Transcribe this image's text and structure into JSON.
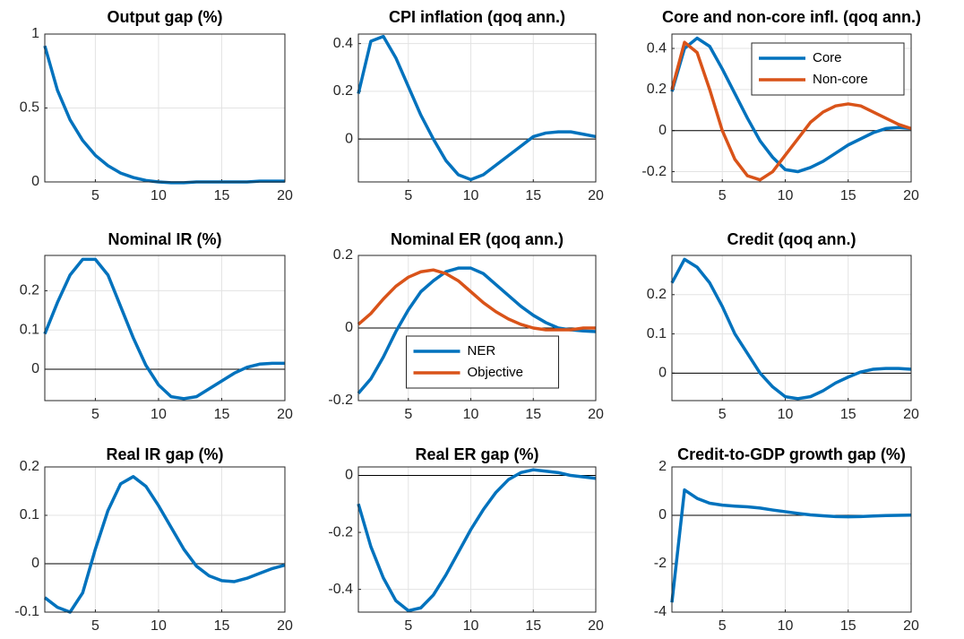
{
  "chart_data": [
    {
      "type": "line",
      "title": "Output gap (%)",
      "x": [
        1,
        2,
        3,
        4,
        5,
        6,
        7,
        8,
        9,
        10,
        11,
        12,
        13,
        14,
        15,
        16,
        17,
        18,
        19,
        20
      ],
      "xlim": [
        1,
        20
      ],
      "xticks": [
        5,
        10,
        15,
        20
      ],
      "ylim": [
        0,
        1
      ],
      "yticks": [
        0,
        0.5,
        1
      ],
      "grid": true,
      "hline": 0,
      "series": [
        {
          "name": "Output gap",
          "color": "#0072bd",
          "values": [
            0.92,
            0.62,
            0.42,
            0.28,
            0.18,
            0.11,
            0.06,
            0.03,
            0.01,
            0,
            -0.005,
            -0.005,
            0,
            0,
            0,
            0,
            0,
            0.005,
            0.005,
            0.005
          ]
        }
      ]
    },
    {
      "type": "line",
      "title": "CPI inflation (qoq ann.)",
      "x": [
        1,
        2,
        3,
        4,
        5,
        6,
        7,
        8,
        9,
        10,
        11,
        12,
        13,
        14,
        15,
        16,
        17,
        18,
        19,
        20
      ],
      "xlim": [
        1,
        20
      ],
      "xticks": [
        5,
        10,
        15,
        20
      ],
      "ylim": [
        -0.18,
        0.44
      ],
      "yticks": [
        0,
        0.2,
        0.4
      ],
      "grid": true,
      "hline": 0,
      "series": [
        {
          "name": "CPI inflation",
          "color": "#0072bd",
          "values": [
            0.19,
            0.41,
            0.43,
            0.34,
            0.22,
            0.1,
            0,
            -0.09,
            -0.15,
            -0.17,
            -0.15,
            -0.11,
            -0.07,
            -0.03,
            0.01,
            0.025,
            0.03,
            0.03,
            0.02,
            0.01
          ]
        }
      ]
    },
    {
      "type": "line",
      "title": "Core and non-core infl. (qoq ann.)",
      "x": [
        1,
        2,
        3,
        4,
        5,
        6,
        7,
        8,
        9,
        10,
        11,
        12,
        13,
        14,
        15,
        16,
        17,
        18,
        19,
        20
      ],
      "xlim": [
        1,
        20
      ],
      "xticks": [
        5,
        10,
        15,
        20
      ],
      "ylim": [
        -0.25,
        0.47
      ],
      "yticks": [
        -0.2,
        0,
        0.2,
        0.4
      ],
      "grid": true,
      "hline": 0,
      "legend": "northeast",
      "series": [
        {
          "name": "Core",
          "color": "#0072bd",
          "values": [
            0.19,
            0.4,
            0.45,
            0.41,
            0.3,
            0.18,
            0.06,
            -0.05,
            -0.13,
            -0.19,
            -0.2,
            -0.18,
            -0.15,
            -0.11,
            -0.07,
            -0.04,
            -0.01,
            0.01,
            0.015,
            0.01
          ]
        },
        {
          "name": "Non-core",
          "color": "#d95319",
          "values": [
            0.2,
            0.43,
            0.38,
            0.2,
            0,
            -0.14,
            -0.22,
            -0.24,
            -0.2,
            -0.12,
            -0.04,
            0.04,
            0.09,
            0.12,
            0.13,
            0.12,
            0.09,
            0.06,
            0.03,
            0.01
          ]
        }
      ]
    },
    {
      "type": "line",
      "title": "Nominal IR (%)",
      "x": [
        1,
        2,
        3,
        4,
        5,
        6,
        7,
        8,
        9,
        10,
        11,
        12,
        13,
        14,
        15,
        16,
        17,
        18,
        19,
        20
      ],
      "xlim": [
        1,
        20
      ],
      "xticks": [
        5,
        10,
        15,
        20
      ],
      "ylim": [
        -0.08,
        0.29
      ],
      "yticks": [
        0,
        0.1,
        0.2
      ],
      "grid": true,
      "hline": 0,
      "series": [
        {
          "name": "Nominal IR",
          "color": "#0072bd",
          "values": [
            0.09,
            0.17,
            0.24,
            0.28,
            0.28,
            0.24,
            0.16,
            0.08,
            0.01,
            -0.04,
            -0.07,
            -0.075,
            -0.07,
            -0.05,
            -0.03,
            -0.01,
            0.005,
            0.013,
            0.015,
            0.015
          ]
        }
      ]
    },
    {
      "type": "line",
      "title": "Nominal ER (qoq ann.)",
      "x": [
        1,
        2,
        3,
        4,
        5,
        6,
        7,
        8,
        9,
        10,
        11,
        12,
        13,
        14,
        15,
        16,
        17,
        18,
        19,
        20
      ],
      "xlim": [
        1,
        20
      ],
      "xticks": [
        5,
        10,
        15,
        20
      ],
      "ylim": [
        -0.2,
        0.2
      ],
      "yticks": [
        -0.2,
        0,
        0.2
      ],
      "grid": true,
      "hline": 0,
      "legend": "south",
      "series": [
        {
          "name": "NER",
          "color": "#0072bd",
          "values": [
            -0.18,
            -0.14,
            -0.08,
            -0.01,
            0.05,
            0.1,
            0.13,
            0.155,
            0.165,
            0.165,
            0.15,
            0.12,
            0.09,
            0.06,
            0.035,
            0.015,
            0,
            -0.005,
            -0.008,
            -0.01
          ]
        },
        {
          "name": "Objective",
          "color": "#d95319",
          "values": [
            0.01,
            0.04,
            0.08,
            0.115,
            0.14,
            0.155,
            0.16,
            0.15,
            0.13,
            0.1,
            0.07,
            0.045,
            0.025,
            0.01,
            0,
            -0.005,
            -0.005,
            -0.005,
            0,
            0
          ]
        }
      ]
    },
    {
      "type": "line",
      "title": "Credit (qoq ann.)",
      "x": [
        1,
        2,
        3,
        4,
        5,
        6,
        7,
        8,
        9,
        10,
        11,
        12,
        13,
        14,
        15,
        16,
        17,
        18,
        19,
        20
      ],
      "xlim": [
        1,
        20
      ],
      "xticks": [
        5,
        10,
        15,
        20
      ],
      "ylim": [
        -0.07,
        0.3
      ],
      "yticks": [
        0,
        0.1,
        0.2
      ],
      "grid": true,
      "hline": 0,
      "series": [
        {
          "name": "Credit",
          "color": "#0072bd",
          "values": [
            0.23,
            0.29,
            0.27,
            0.23,
            0.17,
            0.1,
            0.05,
            0,
            -0.035,
            -0.06,
            -0.065,
            -0.06,
            -0.045,
            -0.025,
            -0.01,
            0.003,
            0.01,
            0.012,
            0.012,
            0.01
          ]
        }
      ]
    },
    {
      "type": "line",
      "title": "Real IR gap (%)",
      "x": [
        1,
        2,
        3,
        4,
        5,
        6,
        7,
        8,
        9,
        10,
        11,
        12,
        13,
        14,
        15,
        16,
        17,
        18,
        19,
        20
      ],
      "xlim": [
        1,
        20
      ],
      "xticks": [
        5,
        10,
        15,
        20
      ],
      "ylim": [
        -0.1,
        0.2
      ],
      "yticks": [
        -0.1,
        0,
        0.1,
        0.2
      ],
      "grid": true,
      "hline": 0,
      "series": [
        {
          "name": "Real IR gap",
          "color": "#0072bd",
          "values": [
            -0.07,
            -0.09,
            -0.1,
            -0.06,
            0.03,
            0.11,
            0.165,
            0.18,
            0.16,
            0.12,
            0.075,
            0.03,
            -0.005,
            -0.025,
            -0.035,
            -0.037,
            -0.03,
            -0.02,
            -0.01,
            -0.003
          ]
        }
      ]
    },
    {
      "type": "line",
      "title": "Real ER gap (%)",
      "x": [
        1,
        2,
        3,
        4,
        5,
        6,
        7,
        8,
        9,
        10,
        11,
        12,
        13,
        14,
        15,
        16,
        17,
        18,
        19,
        20
      ],
      "xlim": [
        1,
        20
      ],
      "xticks": [
        5,
        10,
        15,
        20
      ],
      "ylim": [
        -0.48,
        0.03
      ],
      "yticks": [
        -0.4,
        -0.2,
        0
      ],
      "grid": true,
      "hline": 0,
      "series": [
        {
          "name": "Real ER gap",
          "color": "#0072bd",
          "values": [
            -0.1,
            -0.25,
            -0.36,
            -0.44,
            -0.475,
            -0.465,
            -0.42,
            -0.35,
            -0.27,
            -0.19,
            -0.12,
            -0.06,
            -0.015,
            0.01,
            0.02,
            0.015,
            0.01,
            0,
            -0.005,
            -0.01
          ]
        }
      ]
    },
    {
      "type": "line",
      "title": "Credit-to-GDP growth gap (%)",
      "x": [
        1,
        2,
        3,
        4,
        5,
        6,
        7,
        8,
        9,
        10,
        11,
        12,
        13,
        14,
        15,
        16,
        17,
        18,
        19,
        20
      ],
      "xlim": [
        1,
        20
      ],
      "xticks": [
        5,
        10,
        15,
        20
      ],
      "ylim": [
        -4,
        2
      ],
      "yticks": [
        -4,
        -2,
        0,
        2
      ],
      "grid": true,
      "hline": 0,
      "series": [
        {
          "name": "Credit-to-GDP growth gap",
          "color": "#0072bd",
          "values": [
            -3.6,
            1.05,
            0.7,
            0.5,
            0.42,
            0.38,
            0.35,
            0.3,
            0.22,
            0.15,
            0.08,
            0.02,
            -0.02,
            -0.05,
            -0.06,
            -0.05,
            -0.03,
            -0.01,
            0,
            0.01
          ]
        }
      ]
    }
  ]
}
